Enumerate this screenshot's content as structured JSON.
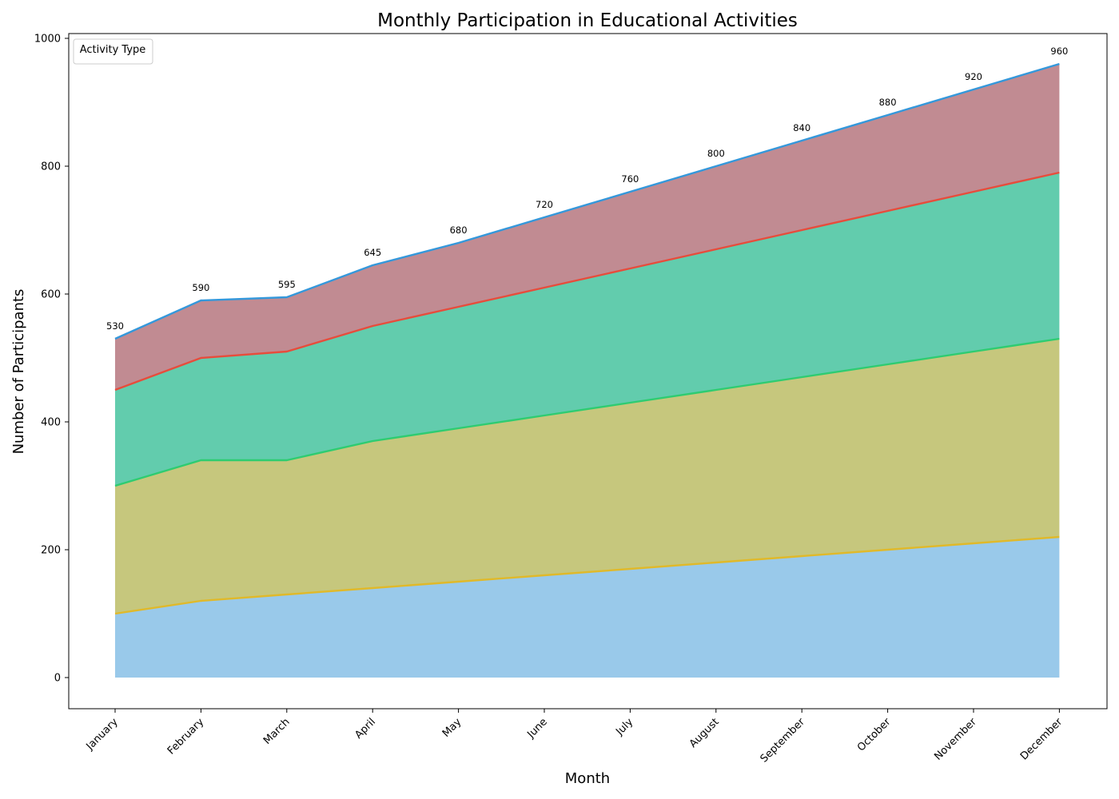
{
  "chart_data": {
    "type": "area",
    "stacked": true,
    "title": "Monthly Participation in Educational Activities",
    "xlabel": "Month",
    "ylabel": "Number of Participants",
    "ylim": [
      -50,
      1000
    ],
    "yticks": [
      0,
      200,
      400,
      600,
      800,
      1000
    ],
    "categories": [
      "January",
      "February",
      "March",
      "April",
      "May",
      "June",
      "July",
      "August",
      "September",
      "October",
      "November",
      "December"
    ],
    "series": [
      {
        "values": [
          100,
          120,
          130,
          140,
          150,
          160,
          170,
          180,
          190,
          200,
          210,
          220
        ],
        "fill": "#99c9ea",
        "line": "#e0b92a"
      },
      {
        "values": [
          200,
          220,
          210,
          230,
          240,
          250,
          260,
          270,
          280,
          290,
          300,
          310
        ],
        "fill": "#c6c77d",
        "line": "#2ecc71"
      },
      {
        "values": [
          150,
          160,
          170,
          180,
          190,
          200,
          210,
          220,
          230,
          240,
          250,
          260
        ],
        "fill": "#62ccad",
        "line": "#e74c3c"
      },
      {
        "values": [
          80,
          90,
          85,
          95,
          100,
          110,
          120,
          130,
          140,
          150,
          160,
          170
        ],
        "fill": "#c18b92",
        "line": "#3498db"
      }
    ],
    "totals": [
      530,
      590,
      595,
      645,
      680,
      720,
      760,
      800,
      840,
      880,
      920,
      960
    ],
    "legend": {
      "title": "Activity Type",
      "position": "top-left"
    },
    "grid": false
  }
}
